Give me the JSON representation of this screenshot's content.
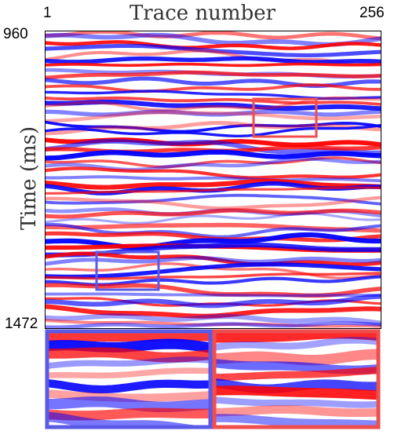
{
  "axes": {
    "x_title": "Trace number",
    "y_title": "Time (ms)",
    "x_ticks": [
      "1",
      "256"
    ],
    "y_ticks": [
      "960",
      "1472"
    ]
  },
  "chart_data": {
    "type": "heatmap",
    "x_label": "Trace number",
    "y_label": "Time (ms)",
    "x_range": [
      1,
      256
    ],
    "y_range": [
      960,
      1472
    ],
    "colormap": [
      "#0000ff",
      "#ffffff",
      "#ff0000"
    ],
    "zoom_boxes": [
      {
        "color": "#ee4e4e",
        "traces": [
          161,
          209
        ],
        "time_ms": [
          1080,
          1141
        ]
      },
      {
        "color": "#5a5ae6",
        "traces": [
          39,
          87
        ],
        "time_ms": [
          1292,
          1353
        ]
      }
    ]
  }
}
